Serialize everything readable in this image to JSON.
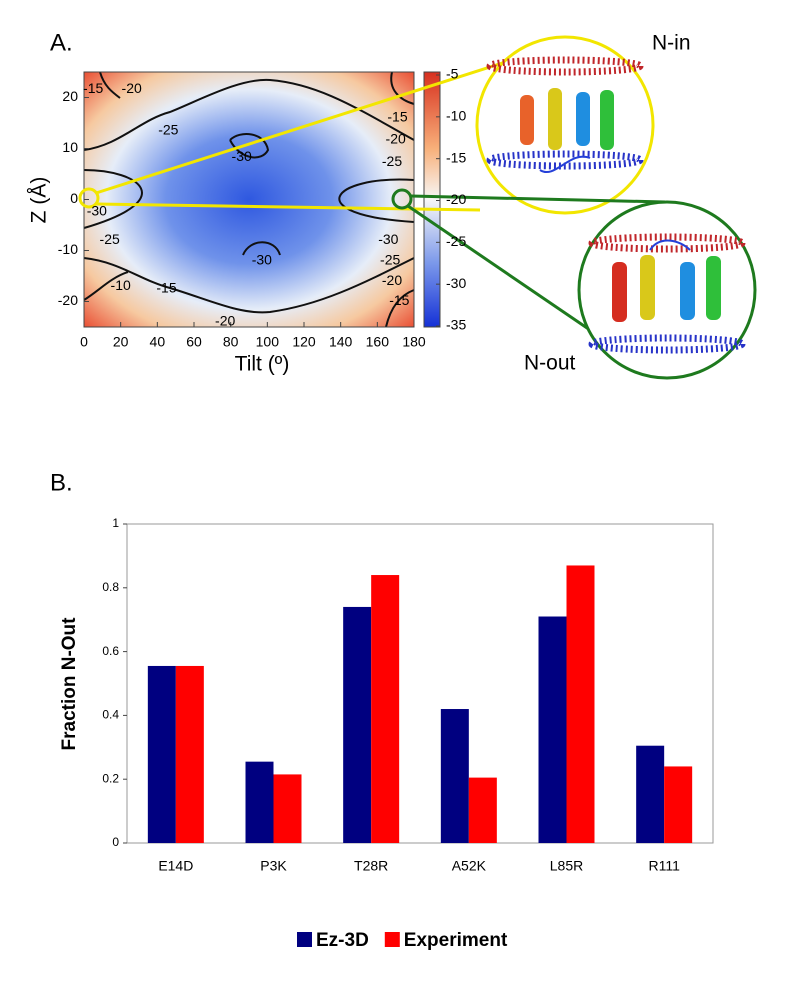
{
  "chart_data": [
    {
      "type": "contour",
      "panel_label": "A.",
      "x_label": "Tilt (º)",
      "y_label": "Z (Å)",
      "xlim": [
        0,
        180
      ],
      "ylim": [
        -25,
        25
      ],
      "xticks": [
        0,
        20,
        40,
        60,
        80,
        100,
        120,
        140,
        160,
        180
      ],
      "yticks": [
        -20,
        -10,
        0,
        10,
        20
      ],
      "clim": [
        -35,
        -5
      ],
      "cticks": [
        -35,
        -30,
        -25,
        -20,
        -15,
        -10,
        -5
      ],
      "contour_labels": [
        {
          "x": 5,
          "y": 21.6,
          "value": -15
        },
        {
          "x": 26,
          "y": 21.6,
          "value": -20
        },
        {
          "x": 46,
          "y": 13.5,
          "value": -25
        },
        {
          "x": 86,
          "y": 8.3,
          "value": -30
        },
        {
          "x": 171,
          "y": 16,
          "value": -15
        },
        {
          "x": 170,
          "y": 11.7,
          "value": -20
        },
        {
          "x": 168,
          "y": 7.3,
          "value": -25
        },
        {
          "x": 7,
          "y": -2.4,
          "value": -30
        },
        {
          "x": 14,
          "y": -8,
          "value": -25
        },
        {
          "x": 166,
          "y": -8,
          "value": -30
        },
        {
          "x": 167,
          "y": -12,
          "value": -25
        },
        {
          "x": 168,
          "y": -16,
          "value": -20
        },
        {
          "x": 172,
          "y": -20,
          "value": -15
        },
        {
          "x": 97,
          "y": -12,
          "value": -30
        },
        {
          "x": 20,
          "y": -17,
          "value": -10
        },
        {
          "x": 45,
          "y": -17.5,
          "value": -15
        },
        {
          "x": 77,
          "y": -24,
          "value": -20
        }
      ],
      "annotations": [
        "N-in",
        "N-out"
      ]
    },
    {
      "type": "bar",
      "panel_label": "B.",
      "y_label": "Fraction N-Out",
      "categories": [
        "E14D",
        "P3K",
        "T28R",
        "A52K",
        "L85R",
        "R111"
      ],
      "series": [
        {
          "name": "Ez-3D",
          "color": "#000080",
          "values": [
            0.555,
            0.255,
            0.74,
            0.42,
            0.71,
            0.305
          ]
        },
        {
          "name": "Experiment",
          "color": "#ff0000",
          "values": [
            0.555,
            0.215,
            0.84,
            0.205,
            0.87,
            0.24
          ]
        }
      ],
      "ylim": [
        0,
        1
      ],
      "yticks": [
        0,
        0.2,
        0.4,
        0.6,
        0.8,
        1
      ],
      "legend": "bottom"
    }
  ]
}
